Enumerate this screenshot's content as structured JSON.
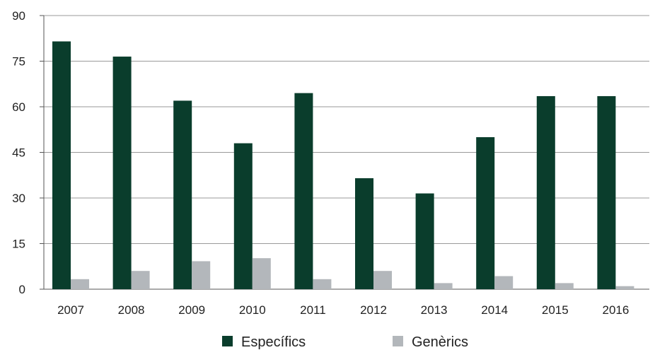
{
  "chart_data": {
    "type": "bar",
    "categories": [
      "2007",
      "2008",
      "2009",
      "2010",
      "2011",
      "2012",
      "2013",
      "2014",
      "2015",
      "2016"
    ],
    "series": [
      {
        "name": "Específics",
        "color": "#0a3d2c",
        "values": [
          81.5,
          76.5,
          62,
          48,
          64.5,
          36.5,
          31.5,
          50,
          63.5,
          63.5
        ]
      },
      {
        "name": "Genèrics",
        "color": "#b3b7bb",
        "values": [
          3.3,
          6,
          9.2,
          10.2,
          3.3,
          6,
          2,
          4.3,
          2,
          1
        ]
      }
    ],
    "yticks": [
      "0",
      "15",
      "30",
      "45",
      "60",
      "75",
      "90"
    ],
    "ylim": [
      0,
      90
    ],
    "grid": true,
    "legend_position": "bottom",
    "title": "",
    "xlabel": "",
    "ylabel": ""
  }
}
